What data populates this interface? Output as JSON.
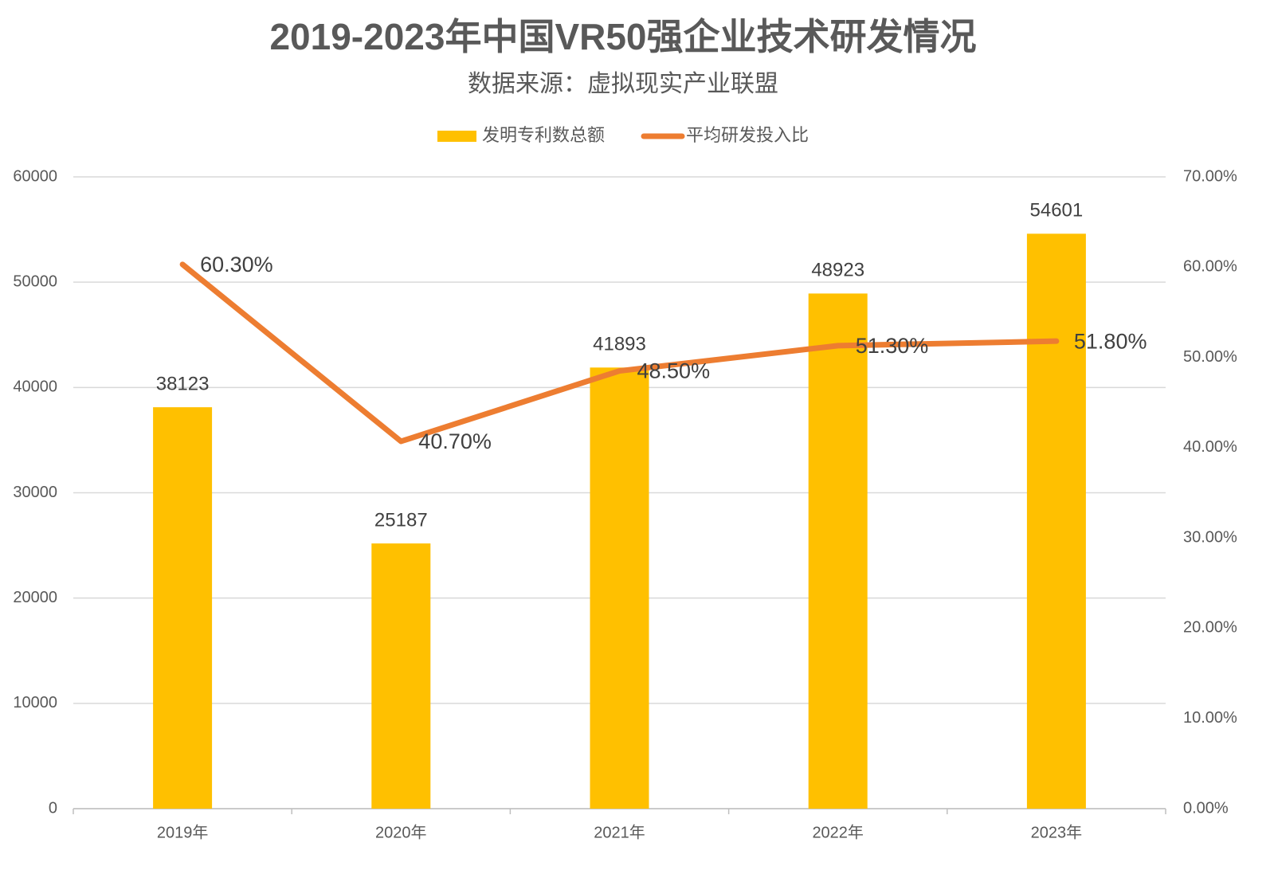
{
  "chart_data": {
    "type": "bar",
    "title": "2019-2023年中国VR50强企业技术研发情况",
    "subtitle": "数据来源：虚拟现实产业联盟",
    "categories": [
      "2019年",
      "2020年",
      "2021年",
      "2022年",
      "2023年"
    ],
    "series": [
      {
        "name": "发明专利数总额",
        "type": "bar",
        "color": "#FFC000",
        "values": [
          38123,
          25187,
          41893,
          48923,
          54601
        ]
      },
      {
        "name": "平均研发投入比",
        "type": "line",
        "axis": "y2",
        "color": "#ED7D31",
        "values": [
          60.3,
          40.7,
          48.5,
          51.3,
          51.8
        ],
        "value_labels": [
          "60.30%",
          "40.70%",
          "48.50%",
          "51.30%",
          "51.80%"
        ]
      }
    ],
    "ylim": [
      0,
      60000
    ],
    "yticks": [
      0,
      10000,
      20000,
      30000,
      40000,
      50000,
      60000
    ],
    "y2lim": [
      0,
      70
    ],
    "y2ticks": [
      {
        "value": 0,
        "label": "0.00%"
      },
      {
        "value": 10,
        "label": "10.00%"
      },
      {
        "value": 20,
        "label": "20.00%"
      },
      {
        "value": 30,
        "label": "30.00%"
      },
      {
        "value": 40,
        "label": "40.00%"
      },
      {
        "value": 50,
        "label": "50.00%"
      },
      {
        "value": 60,
        "label": "60.00%"
      },
      {
        "value": 70,
        "label": "70.00%"
      }
    ],
    "grid": true,
    "legend": "top"
  }
}
